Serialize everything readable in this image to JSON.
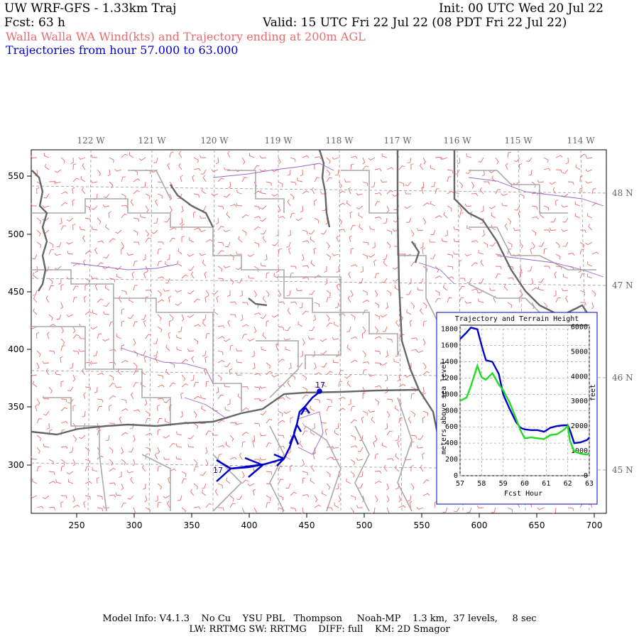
{
  "header": {
    "title": "UW WRF-GFS - 1.33km Traj",
    "forecast": "Fcst:   63 h",
    "init": "Init: 00 UTC Wed 20 Jul 22",
    "valid": "Valid: 15 UTC Fri 22 Jul 22 (08 PDT Fri 22 Jul 22)",
    "field": "Walla Walla WA Wind(kts) and Trajectory ending at 200m AGL",
    "traj_range": "Trajectories from hour  57.000 to  63.000"
  },
  "map": {
    "x_ticks": [
      "250",
      "300",
      "350",
      "400",
      "450",
      "500",
      "550",
      "600",
      "650",
      "700"
    ],
    "y_ticks": [
      "550",
      "500",
      "450",
      "400",
      "350",
      "300"
    ],
    "lon_labels": [
      "122 W",
      "121 W",
      "120 W",
      "119 W",
      "118 W",
      "117 W",
      "116 W",
      "115 W",
      "114 W"
    ],
    "lat_labels": [
      "48 N",
      "47 N",
      "46 N",
      "45 N"
    ],
    "traj_start_label": "17",
    "traj_end_label": "17",
    "colors": {
      "wind_barbs": "#e86c6c",
      "trajectory": "#0000cc",
      "borders": "#aaaaaa",
      "coast": "#666666",
      "county": "#9966cc"
    }
  },
  "chart_data": {
    "type": "line",
    "title": "Trajectory and Terrain Height",
    "xlabel": "Fcst Hour",
    "ylabel": "meters above sea level",
    "ylabel_right": "feet",
    "x_ticks": [
      "57",
      "58",
      "59",
      "60",
      "61",
      "62",
      "63"
    ],
    "y_ticks": [
      "0",
      "200",
      "400",
      "600",
      "800",
      "1000",
      "1200",
      "1400",
      "1600",
      "1800"
    ],
    "y_ticks_right": [
      "0",
      "1000",
      "2000",
      "3000",
      "4000",
      "5000",
      "6000"
    ],
    "xlim": [
      57,
      63
    ],
    "ylim": [
      0,
      1850
    ],
    "series": [
      {
        "color": "#0000cc",
        "x": [
          57.0,
          57.3,
          57.5,
          57.8,
          58.0,
          58.2,
          58.5,
          58.8,
          59.0,
          59.3,
          59.6,
          59.8,
          60.0,
          60.3,
          60.6,
          60.9,
          61.2,
          61.5,
          61.8,
          62.0,
          62.1,
          62.3,
          62.6,
          62.9,
          63.0
        ],
        "y": [
          1680,
          1760,
          1820,
          1800,
          1600,
          1420,
          1400,
          1250,
          1000,
          820,
          660,
          590,
          570,
          560,
          560,
          540,
          590,
          610,
          620,
          620,
          560,
          400,
          410,
          440,
          470
        ]
      },
      {
        "color": "#22dd22",
        "x": [
          57.0,
          57.3,
          57.5,
          57.8,
          58.0,
          58.2,
          58.5,
          58.8,
          59.0,
          59.3,
          59.6,
          59.8,
          60.0,
          60.3,
          60.6,
          60.9,
          61.2,
          61.5,
          61.8,
          62.0,
          62.1,
          62.3,
          62.6,
          62.9,
          63.0
        ],
        "y": [
          920,
          960,
          1100,
          1350,
          1210,
          1180,
          1260,
          1120,
          1050,
          900,
          700,
          560,
          460,
          470,
          460,
          450,
          500,
          510,
          560,
          610,
          430,
          300,
          270,
          260,
          280
        ]
      }
    ]
  },
  "footer": {
    "line1": "Model Info: V4.1.3    No Cu    YSU PBL   Thompson     Noah-MP    1.3 km,  37 levels,     8 sec",
    "line2": "LW: RRTMG SW: RRTMG    DIFF: full    KM: 2D Smagor"
  }
}
